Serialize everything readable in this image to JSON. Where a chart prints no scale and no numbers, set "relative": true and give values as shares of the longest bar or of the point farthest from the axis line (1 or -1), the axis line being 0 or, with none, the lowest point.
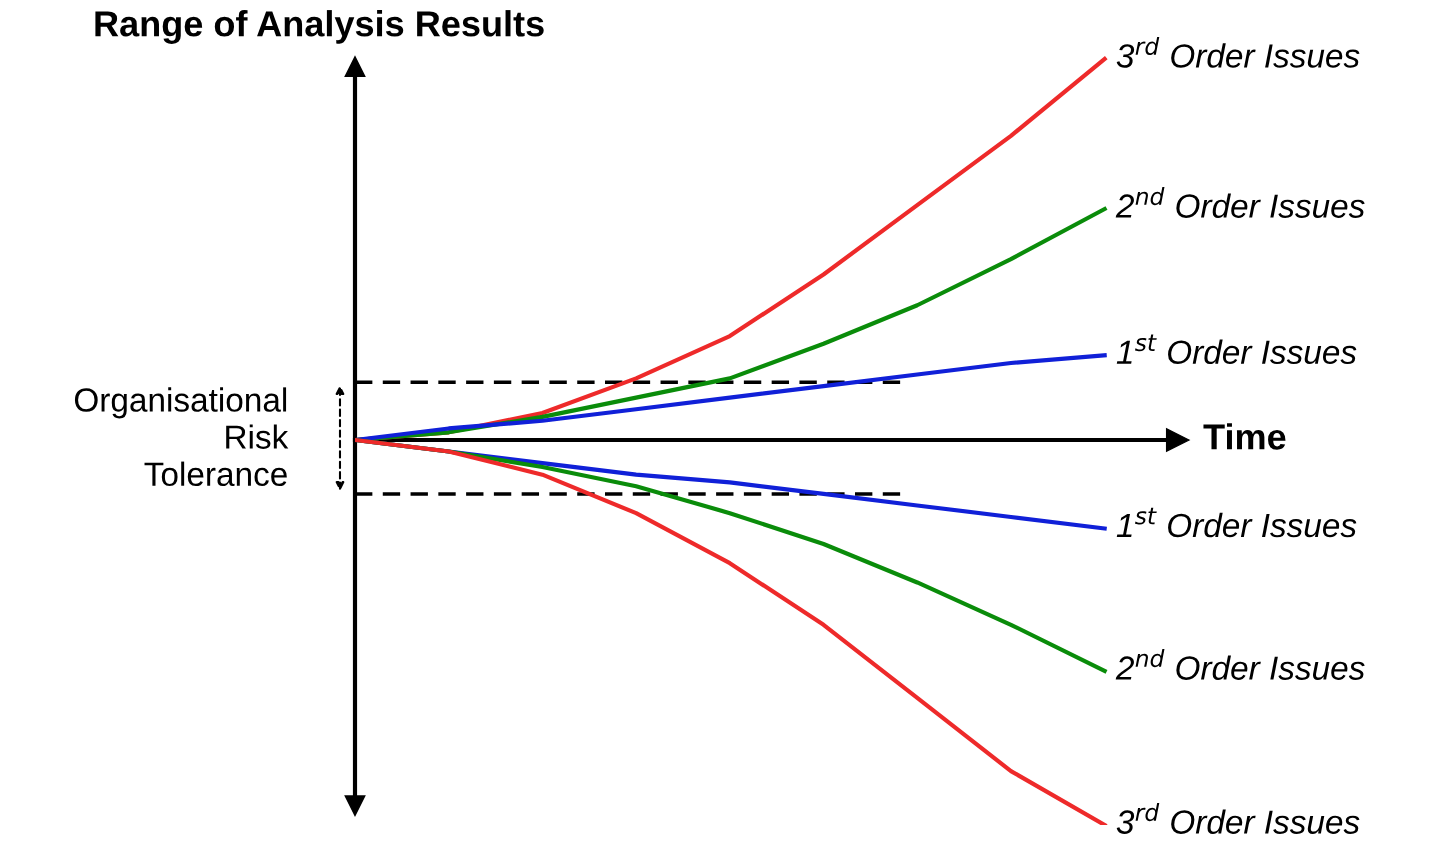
{
  "chart_data": {
    "type": "line",
    "relative": true,
    "title": "Range of Analysis Results",
    "xlabel": "Time",
    "categories": [
      null,
      null,
      null,
      null,
      null,
      null,
      null,
      null,
      null
    ],
    "series": [
      {
        "name": "3$^{rd}$ Order Issues",
        "color": "#ee2a2a",
        "values": [
          0,
          0.02,
          0.07,
          0.16,
          0.27,
          0.43,
          0.61,
          0.79,
          0.99
        ]
      },
      {
        "name": "2$^{nd}$ Order Issues",
        "color": "#0a8c0a",
        "values": [
          0,
          0.02,
          0.06,
          0.11,
          0.16,
          0.25,
          0.35,
          0.47,
          0.6
        ]
      },
      {
        "name": "1$^{st}$ Order Issues",
        "color": "#1020d8",
        "values": [
          0,
          0.03,
          0.05,
          0.08,
          0.11,
          0.14,
          0.17,
          0.2,
          0.22
        ]
      },
      {
        "name": "1$^{st}$ Order Issues",
        "color": "#1020d8",
        "values": [
          0,
          -0.03,
          -0.06,
          -0.09,
          -0.11,
          -0.14,
          -0.17,
          -0.2,
          -0.23
        ]
      },
      {
        "name": "2$^{nd}$ Order Issues",
        "color": "#0a8c0a",
        "values": [
          0,
          -0.03,
          -0.07,
          -0.12,
          -0.19,
          -0.27,
          -0.37,
          -0.48,
          -0.6
        ]
      },
      {
        "name": "3$^{rd}$ Order Issues",
        "color": "#ee2a2a",
        "values": [
          0,
          -0.03,
          -0.09,
          -0.19,
          -0.32,
          -0.48,
          -0.67,
          -0.86,
          -1.0
        ]
      }
    ],
    "ref_lines": [
      {
        "axis": "y",
        "value": 0.15,
        "color": "#000000",
        "line_style": "dashed"
      },
      {
        "axis": "y",
        "value": -0.14,
        "color": "#000000",
        "line_style": "dashed"
      }
    ],
    "annotations": [
      "Organisational\nRisk\nTolerance"
    ]
  }
}
